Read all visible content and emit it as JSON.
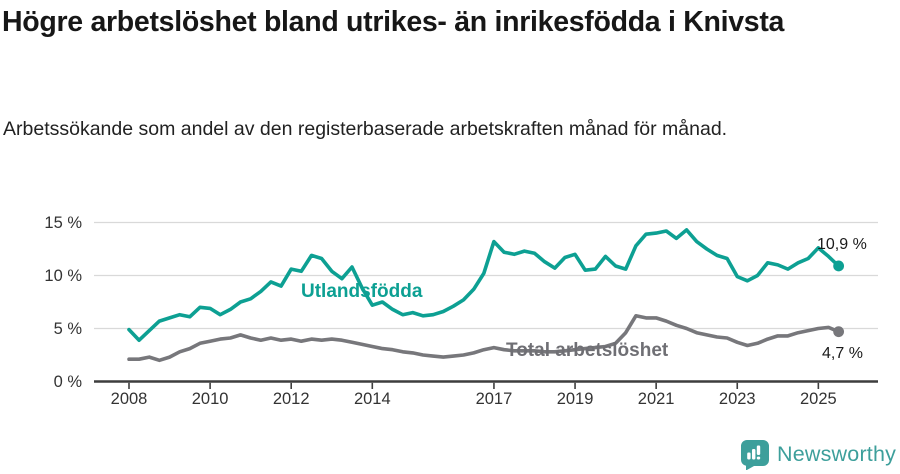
{
  "header": {
    "title": "Högre arbetslöshet bland utrikes- än inrikesfödda i Knivsta",
    "subtitle": "Arbetssökande som andel av den registerbaserade arbetskraften månad för månad."
  },
  "footer": {
    "brand": "Newsworthy",
    "brand_color": "#3D9F9B",
    "icon": "newsworthy-speech-bubble-bar-chart-icon"
  },
  "colors": {
    "foreign_born_line": "#0DA093",
    "total_line": "#77777B",
    "total_label": "#6F6F74",
    "gridline": "#D9D9D9",
    "axis": "#3D3D3D",
    "tick_label": "#333333",
    "end_label": "#1A1A1A"
  },
  "chart_data": {
    "type": "line",
    "title": "Högre arbetslöshet bland utrikes- än inrikesfödda i Knivsta",
    "subtitle": "Arbetssökande som andel av den registerbaserade arbetskraften månad för månad.",
    "grid": "horizontal",
    "legend_position": "inline-labels",
    "x_start": 2008.0,
    "x_step": 0.25,
    "x_end": 2025.5,
    "x_axis": {
      "tick_years": [
        2008,
        2010,
        2012,
        2014,
        2017,
        2019,
        2021,
        2023,
        2025
      ],
      "tick_labels": [
        "2008",
        "2010",
        "2012",
        "2014",
        "2017",
        "2019",
        "2021",
        "2023",
        "2025"
      ]
    },
    "y_axis": {
      "ticks": [
        0,
        5,
        10,
        15
      ],
      "tick_labels": [
        "0 %",
        "5 %",
        "10 %",
        "15 %"
      ],
      "range": [
        0,
        15.8
      ],
      "unit": "%"
    },
    "series": [
      {
        "name": "utlandsfodda",
        "label": "Utlandsfödda",
        "color": "#0DA093",
        "label_color": "#0DA093",
        "end_label": "10,9 %",
        "end_value": 10.9,
        "values": [
          4.9,
          3.9,
          4.8,
          5.7,
          6.0,
          6.3,
          6.1,
          7.0,
          6.9,
          6.3,
          6.8,
          7.5,
          7.8,
          8.5,
          9.4,
          9.0,
          10.6,
          10.4,
          11.9,
          11.6,
          10.4,
          9.7,
          10.8,
          8.8,
          7.2,
          7.5,
          6.8,
          6.3,
          6.5,
          6.2,
          6.3,
          6.6,
          7.1,
          7.7,
          8.7,
          10.2,
          13.2,
          12.2,
          12.0,
          12.3,
          12.1,
          11.3,
          10.7,
          11.7,
          12.0,
          10.5,
          10.6,
          11.8,
          10.9,
          10.6,
          12.8,
          13.9,
          14.0,
          14.2,
          13.5,
          14.3,
          13.2,
          12.5,
          11.9,
          11.6,
          9.9,
          9.5,
          10.0,
          11.2,
          11.0,
          10.6,
          11.2,
          11.6,
          12.6,
          11.8,
          10.9
        ]
      },
      {
        "name": "total-arbetsloshet",
        "label": "Total arbetslöshet",
        "color": "#77777B",
        "label_color": "#6F6F74",
        "end_label": "4,7 %",
        "end_value": 4.7,
        "values": [
          2.1,
          2.1,
          2.3,
          2.0,
          2.3,
          2.8,
          3.1,
          3.6,
          3.8,
          4.0,
          4.1,
          4.4,
          4.1,
          3.9,
          4.1,
          3.9,
          4.0,
          3.8,
          4.0,
          3.9,
          4.0,
          3.9,
          3.7,
          3.5,
          3.3,
          3.1,
          3.0,
          2.8,
          2.7,
          2.5,
          2.4,
          2.3,
          2.4,
          2.5,
          2.7,
          3.0,
          3.2,
          3.0,
          2.9,
          2.9,
          2.9,
          2.8,
          2.8,
          2.9,
          3.0,
          3.1,
          3.2,
          3.3,
          3.6,
          4.6,
          6.2,
          6.0,
          6.0,
          5.7,
          5.3,
          5.0,
          4.6,
          4.4,
          4.2,
          4.1,
          3.7,
          3.4,
          3.6,
          4.0,
          4.3,
          4.3,
          4.6,
          4.8,
          5.0,
          5.1,
          4.7
        ]
      }
    ]
  }
}
